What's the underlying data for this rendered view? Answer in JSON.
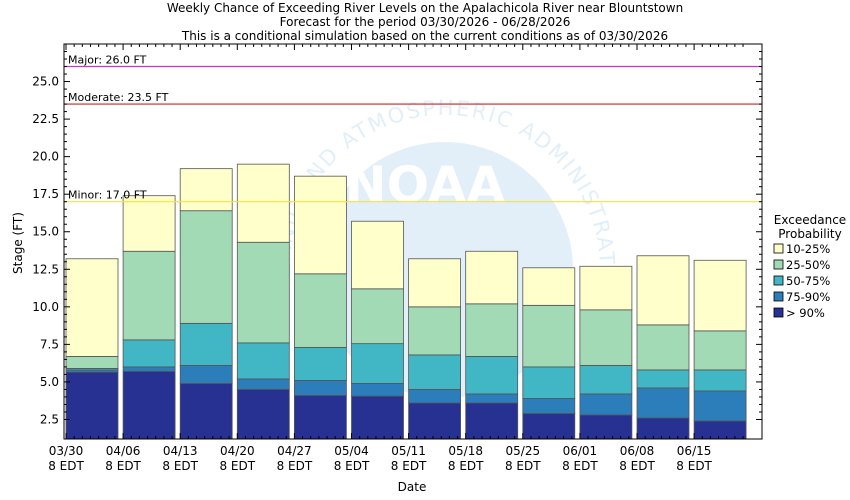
{
  "title_lines": [
    "Weekly Chance of Exceeding River Levels on the Apalachicola River near Blountstown",
    "Forecast for the period 03/30/2026 - 06/28/2026",
    "This is a conditional simulation based on the current conditions as of 03/30/2026"
  ],
  "watermark": {
    "logo_text": "NOAA",
    "arc_text": "OCEANIC AND ATMOSPHERIC ADMINISTRATION"
  },
  "colors": {
    "gt90": "#263191",
    "p75_90": "#2c7ebb",
    "p50_75": "#41b6c4",
    "p25_50": "#a1dab4",
    "p10_25": "#ffffcc",
    "major_line": "#cc33cc",
    "moderate_line": "#cc2222",
    "minor_line": "#f2e14a"
  },
  "chart_data": {
    "type": "bar",
    "stacked": true,
    "xlabel": "Date",
    "ylabel": "Stage (FT)",
    "ylim": [
      1.2,
      27.5
    ],
    "yticks": [
      "2.5",
      "5.0",
      "7.5",
      "10.0",
      "12.5",
      "15.0",
      "17.5",
      "20.0",
      "22.5",
      "25.0"
    ],
    "xticks": [
      [
        "03/30",
        "8 EDT"
      ],
      [
        "04/06",
        "8 EDT"
      ],
      [
        "04/13",
        "8 EDT"
      ],
      [
        "04/20",
        "8 EDT"
      ],
      [
        "04/27",
        "8 EDT"
      ],
      [
        "05/04",
        "8 EDT"
      ],
      [
        "05/11",
        "8 EDT"
      ],
      [
        "05/18",
        "8 EDT"
      ],
      [
        "05/25",
        "8 EDT"
      ],
      [
        "06/01",
        "8 EDT"
      ],
      [
        "06/08",
        "8 EDT"
      ],
      [
        "06/15",
        "8 EDT"
      ]
    ],
    "legend": {
      "title_lines": [
        "Exceedance",
        "Probability"
      ],
      "position": "right",
      "entries": [
        {
          "key": "p10_25",
          "label": "10-25%"
        },
        {
          "key": "p25_50",
          "label": "25-50%"
        },
        {
          "key": "p50_75",
          "label": "50-75%"
        },
        {
          "key": "p75_90",
          "label": "75-90%"
        },
        {
          "key": "gt90",
          "label": "> 90%"
        }
      ]
    },
    "thresholds": [
      {
        "key": "major_line",
        "label": "Major: 26.0 FT",
        "value": 26.0
      },
      {
        "key": "moderate_line",
        "label": "Moderate: 23.5 FT",
        "value": 23.5
      },
      {
        "key": "minor_line",
        "label": "Minor: 17.0 FT",
        "value": 17.0
      }
    ],
    "weeks": [
      {
        "levels": [
          5.65,
          5.8,
          5.9,
          6.7,
          13.2
        ]
      },
      {
        "levels": [
          5.7,
          6.0,
          7.8,
          13.7,
          17.4
        ]
      },
      {
        "levels": [
          4.9,
          6.1,
          8.9,
          16.4,
          19.2
        ]
      },
      {
        "levels": [
          4.5,
          5.2,
          7.6,
          14.3,
          19.5
        ]
      },
      {
        "levels": [
          4.1,
          5.1,
          7.3,
          12.2,
          18.7
        ]
      },
      {
        "levels": [
          4.05,
          4.9,
          7.55,
          11.2,
          15.7
        ]
      },
      {
        "levels": [
          3.6,
          4.5,
          6.8,
          10.0,
          13.2
        ]
      },
      {
        "levels": [
          3.6,
          4.2,
          6.7,
          10.2,
          13.7
        ]
      },
      {
        "levels": [
          2.9,
          3.9,
          6.0,
          10.1,
          12.6
        ]
      },
      {
        "levels": [
          2.8,
          4.2,
          6.1,
          9.8,
          12.7
        ]
      },
      {
        "levels": [
          2.6,
          4.6,
          5.8,
          8.8,
          13.4
        ]
      },
      {
        "levels": [
          2.4,
          4.4,
          5.8,
          8.4,
          13.1
        ]
      }
    ]
  }
}
